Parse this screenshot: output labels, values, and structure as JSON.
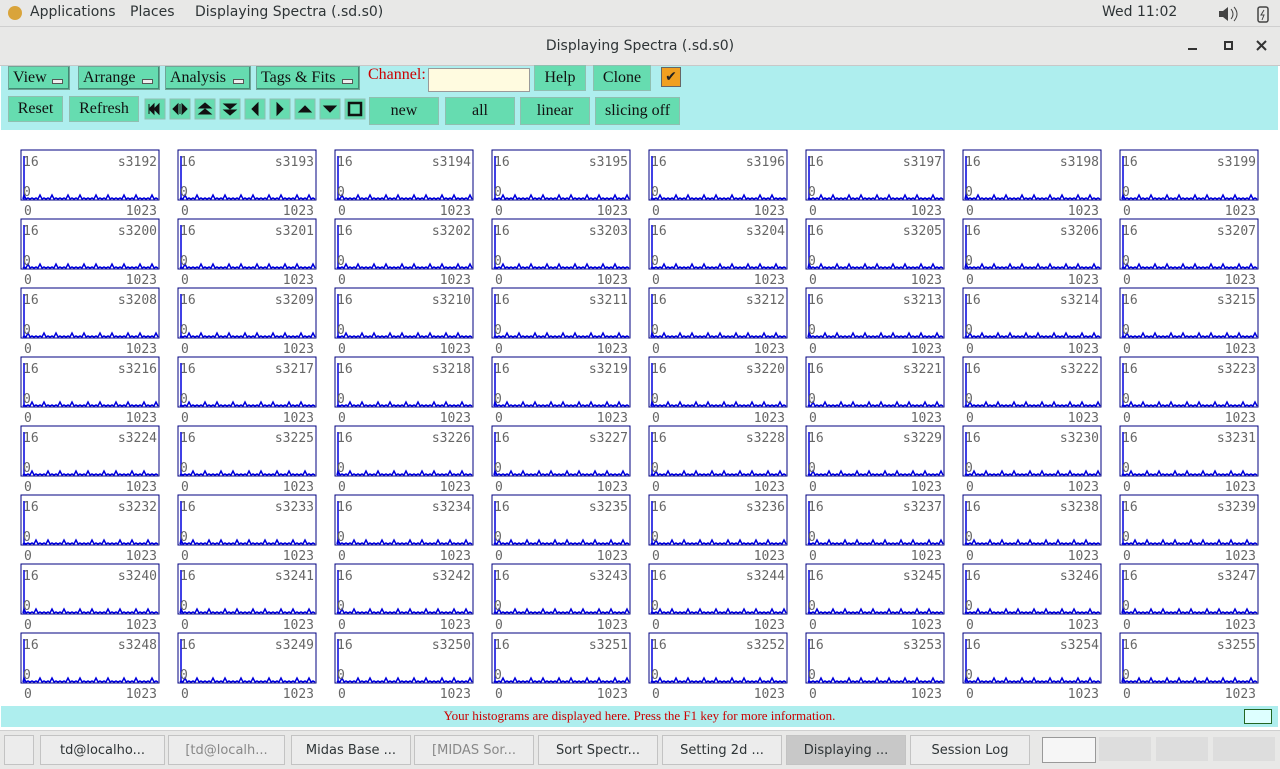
{
  "top_bar": {
    "menus": [
      "Applications",
      "Places",
      "Displaying Spectra (.sd.s0)"
    ],
    "clock": "Wed 11:02"
  },
  "window": {
    "title": "Displaying Spectra (.sd.s0)"
  },
  "toolbar": {
    "menus": [
      "View",
      "Arrange",
      "Analysis",
      "Tags & Fits"
    ],
    "channel_label": "Channel:",
    "buttons_row1": [
      "Help",
      "Clone"
    ],
    "buttons_row2_left": [
      "Reset",
      "Refresh"
    ],
    "buttons_row2_right": [
      "new",
      "all",
      "linear",
      "slicing off"
    ]
  },
  "spectra": {
    "ymax": "16",
    "ymin": "0",
    "xmin": "0",
    "xmax": "1023",
    "names": [
      "s3192",
      "s3193",
      "s3194",
      "s3195",
      "s3196",
      "s3197",
      "s3198",
      "s3199",
      "s3200",
      "s3201",
      "s3202",
      "s3203",
      "s3204",
      "s3205",
      "s3206",
      "s3207",
      "s3208",
      "s3209",
      "s3210",
      "s3211",
      "s3212",
      "s3213",
      "s3214",
      "s3215",
      "s3216",
      "s3217",
      "s3218",
      "s3219",
      "s3220",
      "s3221",
      "s3222",
      "s3223",
      "s3224",
      "s3225",
      "s3226",
      "s3227",
      "s3228",
      "s3229",
      "s3230",
      "s3231",
      "s3232",
      "s3233",
      "s3234",
      "s3235",
      "s3236",
      "s3237",
      "s3238",
      "s3239",
      "s3240",
      "s3241",
      "s3242",
      "s3243",
      "s3244",
      "s3245",
      "s3246",
      "s3247",
      "s3248",
      "s3249",
      "s3250",
      "s3251",
      "s3252",
      "s3253",
      "s3254",
      "s3255"
    ]
  },
  "status": "Your histograms are displayed here. Press the F1 key for more information.",
  "taskbar": [
    "td@localho...",
    "[td@localh...",
    "Midas Base ...",
    "[MIDAS Sor...",
    "Sort Spectr...",
    "Setting 2d ...",
    "Displaying ...",
    "Session Log"
  ]
}
